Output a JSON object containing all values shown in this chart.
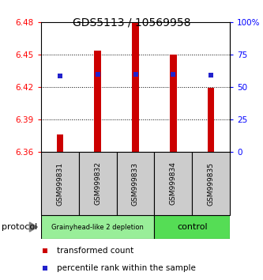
{
  "title": "GDS5113 / 10569958",
  "samples": [
    "GSM999831",
    "GSM999832",
    "GSM999833",
    "GSM999834",
    "GSM999835"
  ],
  "red_bar_bottom": 6.36,
  "red_bar_tops": [
    6.376,
    6.454,
    6.479,
    6.45,
    6.419
  ],
  "blue_square_y": [
    6.43,
    6.432,
    6.432,
    6.432,
    6.431
  ],
  "ylim": [
    6.36,
    6.48
  ],
  "yticks_left": [
    6.36,
    6.39,
    6.42,
    6.45,
    6.48
  ],
  "yticks_right": [
    0,
    25,
    50,
    75,
    100
  ],
  "ytick_right_labels": [
    "0",
    "25",
    "50",
    "75",
    "100%"
  ],
  "groups": [
    {
      "label": "Grainyhead-like 2 depletion",
      "n_samples": 3,
      "color": "#99ee99"
    },
    {
      "label": "control",
      "n_samples": 2,
      "color": "#55dd55"
    }
  ],
  "bar_color": "#cc0000",
  "square_color": "#2222cc",
  "protocol_label": "protocol",
  "legend_red": "transformed count",
  "legend_blue": "percentile rank within the sample",
  "bg_color": "#ffffff",
  "label_area_bg": "#cccccc"
}
